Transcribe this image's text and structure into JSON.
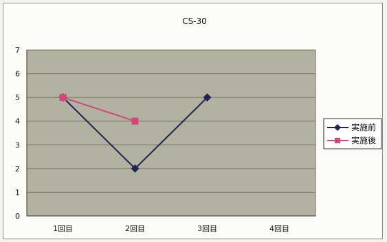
{
  "chart_data": {
    "type": "line",
    "title": "CS-30",
    "xlabel": "",
    "ylabel": "",
    "categories": [
      "1回目",
      "2回目",
      "3回目",
      "4回目"
    ],
    "ylim": [
      0,
      7
    ],
    "yticks": [
      "0",
      "1",
      "2",
      "3",
      "4",
      "5",
      "6",
      "7"
    ],
    "grid": true,
    "plot_background": "#b3b19f",
    "legend_position": "right",
    "series": [
      {
        "name": "実施前",
        "values": [
          5,
          2,
          5,
          null
        ],
        "color": "#1f2552",
        "marker": "diamond"
      },
      {
        "name": "実施後",
        "values": [
          5,
          4,
          null,
          null
        ],
        "color": "#d1477a",
        "marker": "square"
      }
    ]
  }
}
